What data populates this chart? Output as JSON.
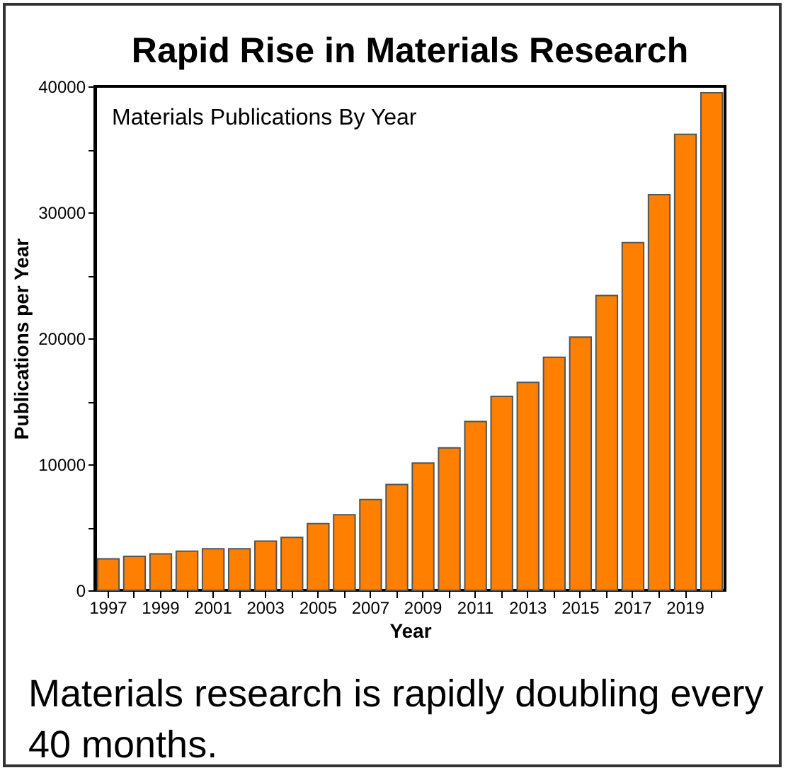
{
  "chart_data": {
    "type": "bar",
    "title": "Rapid Rise in Materials Research",
    "xlabel": "Year",
    "ylabel": "Publications per Year",
    "annotations": [
      "Materials Publications By Year",
      "Materials research is rapidly doubling every 40 months."
    ],
    "categories": [
      "1997",
      null,
      "1999",
      null,
      "2001",
      null,
      "2003",
      null,
      "2005",
      null,
      "2007",
      null,
      "2009",
      null,
      "2011",
      null,
      "2013",
      null,
      "2015",
      null,
      "2017",
      null,
      "2019",
      null
    ],
    "values": [
      2500,
      2700,
      2900,
      3100,
      3300,
      3300,
      3900,
      4200,
      5300,
      6000,
      7200,
      8400,
      10100,
      11300,
      13400,
      15400,
      16500,
      18500,
      20100,
      23400,
      27600,
      31400,
      36200,
      39500
    ],
    "color": "#ff8000",
    "ylim": [
      0,
      40000
    ],
    "yticks": [
      0,
      {
        "value": 5000,
        "label": null
      },
      10000,
      {
        "value": 15000,
        "label": null
      },
      20000,
      {
        "value": 25000,
        "label": null
      },
      30000,
      {
        "value": 35000,
        "label": null
      },
      40000
    ],
    "grid": false
  }
}
